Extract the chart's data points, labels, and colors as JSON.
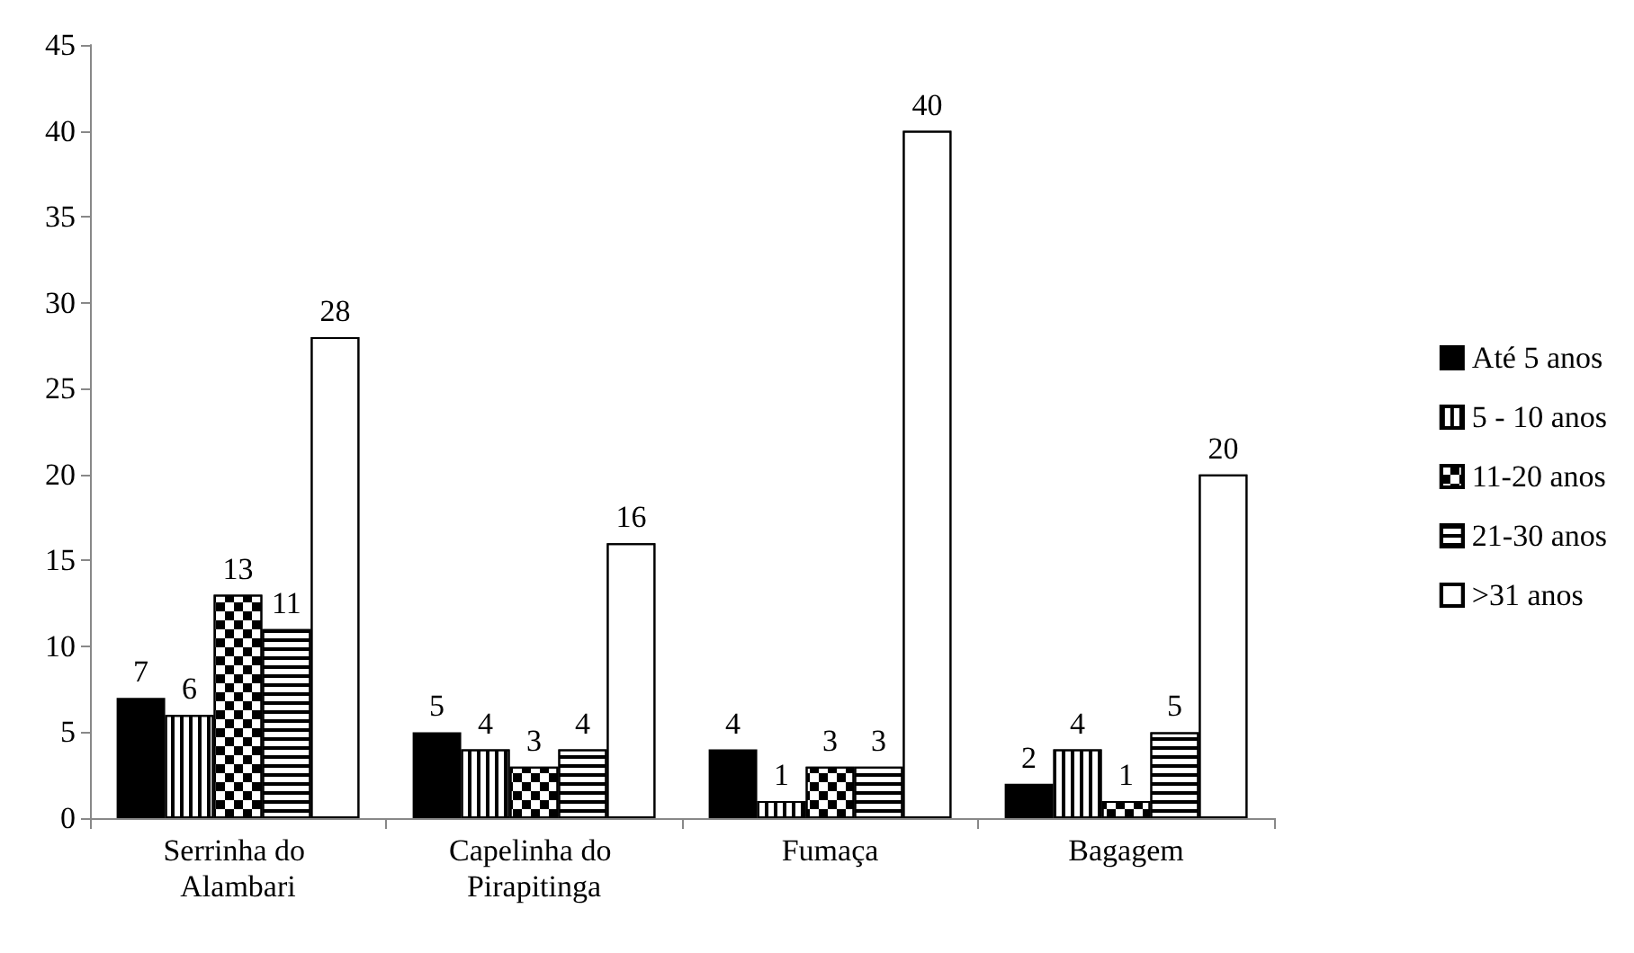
{
  "chart_data": {
    "type": "bar",
    "categories": [
      "Serrinha do Alambari",
      "Capelinha do Pirapitinga",
      "Fumaça",
      "Bagagem"
    ],
    "series": [
      {
        "name": "Até 5 anos",
        "color": "#000000",
        "values": [
          7,
          5,
          4,
          2
        ]
      },
      {
        "name": "5 - 10 anos",
        "color": "#ffffff",
        "values": [
          6,
          4,
          1,
          4
        ]
      },
      {
        "name": "11-20 anos",
        "color": "#ffffff",
        "values": [
          13,
          3,
          3,
          1
        ]
      },
      {
        "name": "21-30 anos",
        "color": "#ffffff",
        "values": [
          11,
          4,
          3,
          5
        ]
      },
      {
        "name": ">31 anos",
        "color": "#ffffff",
        "values": [
          28,
          16,
          40,
          20
        ]
      }
    ],
    "ylim": [
      0,
      45
    ],
    "yticks": [
      0,
      5,
      10,
      15,
      20,
      25,
      30,
      35,
      40,
      45
    ],
    "data_labels": true,
    "grid": false,
    "legend": "right"
  }
}
